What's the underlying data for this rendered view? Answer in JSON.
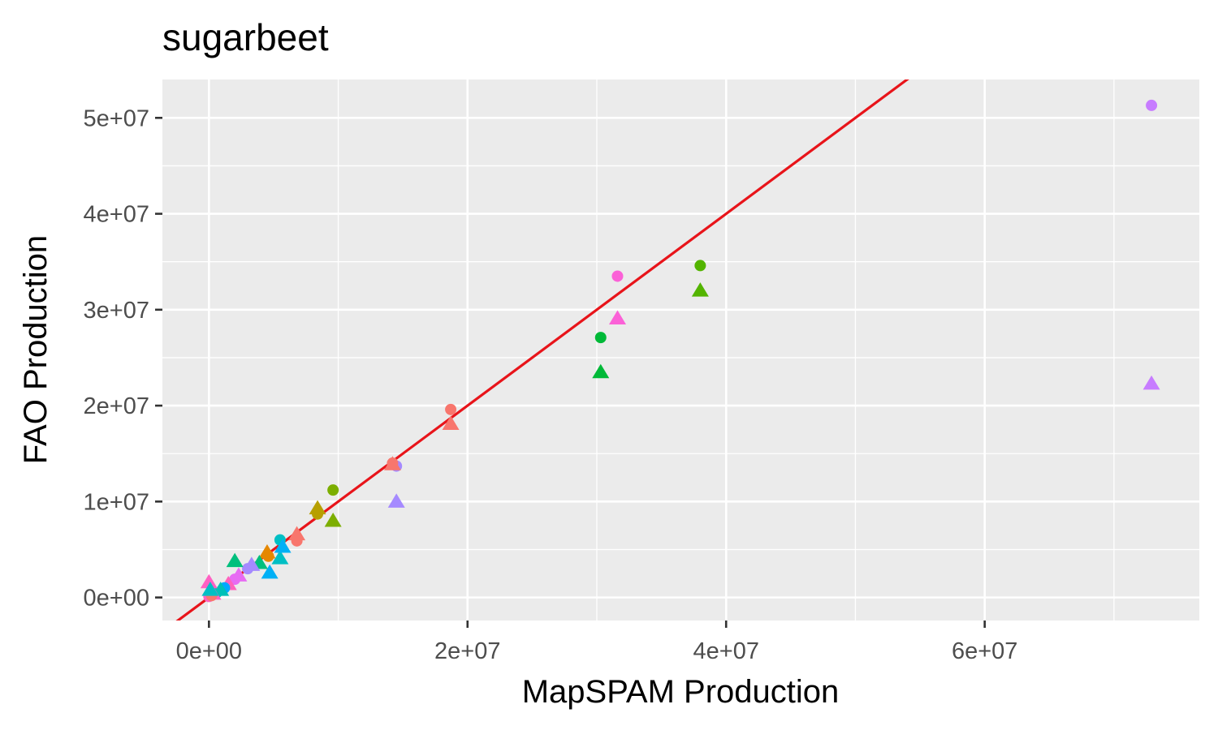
{
  "chart_data": {
    "type": "scatter",
    "title": "sugarbeet",
    "xlabel": "MapSPAM Production",
    "ylabel": "FAO Production",
    "xlim": [
      -3600000.0,
      76600000.0
    ],
    "ylim": [
      -2400000.0,
      54000000.0
    ],
    "x_ticks": [
      {
        "value": 0,
        "label": "0e+00"
      },
      {
        "value": 20000000,
        "label": "2e+07"
      },
      {
        "value": 40000000,
        "label": "4e+07"
      },
      {
        "value": 60000000,
        "label": "6e+07"
      }
    ],
    "y_ticks": [
      {
        "value": 0,
        "label": "0e+00"
      },
      {
        "value": 10000000,
        "label": "1e+07"
      },
      {
        "value": 20000000,
        "label": "2e+07"
      },
      {
        "value": 30000000,
        "label": "3e+07"
      },
      {
        "value": 40000000,
        "label": "4e+07"
      },
      {
        "value": 50000000,
        "label": "5e+07"
      }
    ],
    "grid": true,
    "background": "#ebebeb",
    "reference_line": {
      "slope": 1,
      "intercept": 0,
      "color": "#e8141a"
    },
    "points": [
      {
        "x": 72900000,
        "y": 51300000,
        "shape": "circle",
        "color": "#c77cff"
      },
      {
        "x": 72900000,
        "y": 22300000,
        "shape": "triangle",
        "color": "#c77cff"
      },
      {
        "x": 38000000,
        "y": 34600000,
        "shape": "circle",
        "color": "#53b400"
      },
      {
        "x": 38000000,
        "y": 32000000,
        "shape": "triangle",
        "color": "#53b400"
      },
      {
        "x": 31600000,
        "y": 33500000,
        "shape": "circle",
        "color": "#fb61d7"
      },
      {
        "x": 31600000,
        "y": 29100000,
        "shape": "triangle",
        "color": "#fb61d7"
      },
      {
        "x": 30300000,
        "y": 27100000,
        "shape": "circle",
        "color": "#00b938"
      },
      {
        "x": 30300000,
        "y": 23500000,
        "shape": "triangle",
        "color": "#00b938"
      },
      {
        "x": 18700000,
        "y": 19600000,
        "shape": "circle",
        "color": "#f8766d"
      },
      {
        "x": 18700000,
        "y": 18100000,
        "shape": "triangle",
        "color": "#f8766d"
      },
      {
        "x": 14500000,
        "y": 13700000,
        "shape": "circle",
        "color": "#a58aff"
      },
      {
        "x": 14500000,
        "y": 10000000,
        "shape": "triangle",
        "color": "#a58aff"
      },
      {
        "x": 14200000,
        "y": 14000000,
        "shape": "circle",
        "color": "#f8766d"
      },
      {
        "x": 14200000,
        "y": 13900000,
        "shape": "triangle",
        "color": "#f8766d"
      },
      {
        "x": 9600000,
        "y": 11200000,
        "shape": "circle",
        "color": "#7cae00"
      },
      {
        "x": 9600000,
        "y": 8000000,
        "shape": "triangle",
        "color": "#7cae00"
      },
      {
        "x": 8400000,
        "y": 8700000,
        "shape": "circle",
        "color": "#b79f00"
      },
      {
        "x": 8400000,
        "y": 9300000,
        "shape": "triangle",
        "color": "#b79f00"
      },
      {
        "x": 6800000,
        "y": 5900000,
        "shape": "circle",
        "color": "#f8766d"
      },
      {
        "x": 6800000,
        "y": 6600000,
        "shape": "triangle",
        "color": "#f8766d"
      },
      {
        "x": 5500000,
        "y": 6000000,
        "shape": "circle",
        "color": "#00bfc4"
      },
      {
        "x": 5500000,
        "y": 4100000,
        "shape": "triangle",
        "color": "#00bfc4"
      },
      {
        "x": 5700000,
        "y": 5300000,
        "shape": "triangle",
        "color": "#00b0f6"
      },
      {
        "x": 4700000,
        "y": 2600000,
        "shape": "triangle",
        "color": "#00b0f6"
      },
      {
        "x": 4600000,
        "y": 4300000,
        "shape": "circle",
        "color": "#e58700"
      },
      {
        "x": 4500000,
        "y": 4700000,
        "shape": "triangle",
        "color": "#e58700"
      },
      {
        "x": 3900000,
        "y": 3600000,
        "shape": "triangle",
        "color": "#00bf7d"
      },
      {
        "x": 3300000,
        "y": 3400000,
        "shape": "triangle",
        "color": "#a58aff"
      },
      {
        "x": 3000000,
        "y": 3000000,
        "shape": "circle",
        "color": "#a58aff"
      },
      {
        "x": 2000000,
        "y": 3800000,
        "shape": "triangle",
        "color": "#00bf7d"
      },
      {
        "x": 2300000,
        "y": 2300000,
        "shape": "triangle",
        "color": "#e76bf3"
      },
      {
        "x": 2000000,
        "y": 1900000,
        "shape": "circle",
        "color": "#e76bf3"
      },
      {
        "x": 1500000,
        "y": 1400000,
        "shape": "triangle",
        "color": "#ff62bc"
      },
      {
        "x": 1200000,
        "y": 1000000,
        "shape": "circle",
        "color": "#00a9ff"
      },
      {
        "x": 900000,
        "y": 800000,
        "shape": "triangle",
        "color": "#00c0b8"
      },
      {
        "x": 600000,
        "y": 500000,
        "shape": "circle",
        "color": "#00c0b8"
      },
      {
        "x": 300000,
        "y": 400000,
        "shape": "triangle",
        "color": "#ff61c3"
      },
      {
        "x": 0,
        "y": 1600000,
        "shape": "triangle",
        "color": "#ff61c3"
      },
      {
        "x": 0,
        "y": 100000,
        "shape": "circle",
        "color": "#ff61c3"
      },
      {
        "x": 200000,
        "y": 200000,
        "shape": "circle",
        "color": "#f8766d"
      },
      {
        "x": 100000,
        "y": 800000,
        "shape": "triangle",
        "color": "#00bfc4"
      }
    ]
  }
}
